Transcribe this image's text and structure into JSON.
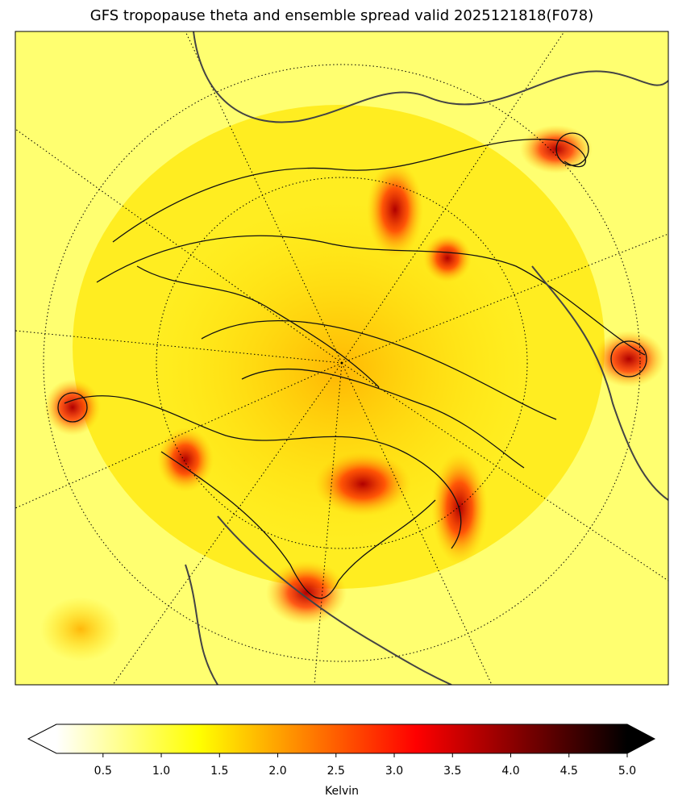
{
  "title": "GFS tropopause theta and ensemble spread valid 2025121818(F078)",
  "colorbar": {
    "label": "Kelvin",
    "lim": [
      0.1,
      5.0
    ],
    "ticks": [
      0.5,
      {
        "value": 1,
        "label": "1.0"
      },
      1.5,
      {
        "value": 2,
        "label": "2.0"
      },
      2.5,
      {
        "value": 3,
        "label": "3.0"
      },
      3.5,
      {
        "value": 4,
        "label": "4.0"
      },
      4.5,
      {
        "value": 5,
        "label": "5.0"
      }
    ]
  }
}
